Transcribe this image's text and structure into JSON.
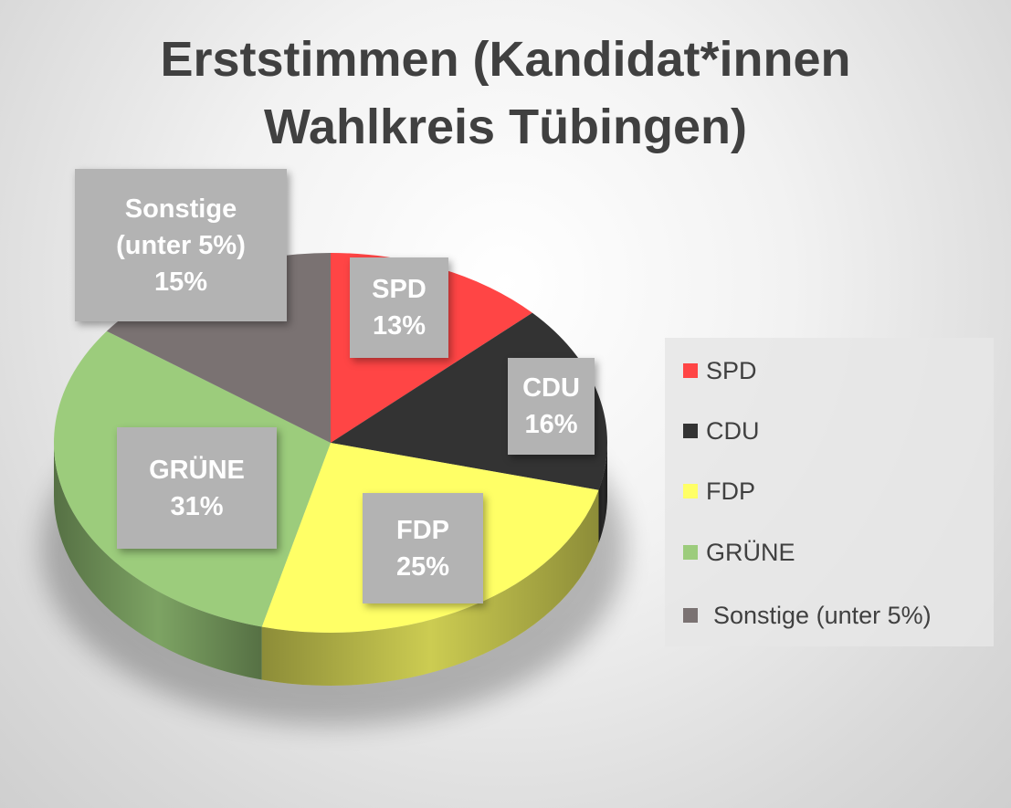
{
  "chart_data": {
    "type": "pie",
    "title": "Erststimmen (Kandidat*innen Wahlkreis Tübingen)",
    "slices": [
      {
        "name": "SPD",
        "value": 13,
        "label": "13%",
        "color": "#ff4545"
      },
      {
        "name": "CDU",
        "value": 16,
        "label": "16%",
        "color": "#333333"
      },
      {
        "name": "FDP",
        "value": 25,
        "label": "25%",
        "color": "#ffff66"
      },
      {
        "name": "GRÜNE",
        "value": 31,
        "label": "31%",
        "color": "#9ccc7c"
      },
      {
        "name": "Sonstige (unter 5%)",
        "value": 15,
        "label": "15%",
        "color": "#7a7272"
      }
    ],
    "legend_position": "right"
  }
}
